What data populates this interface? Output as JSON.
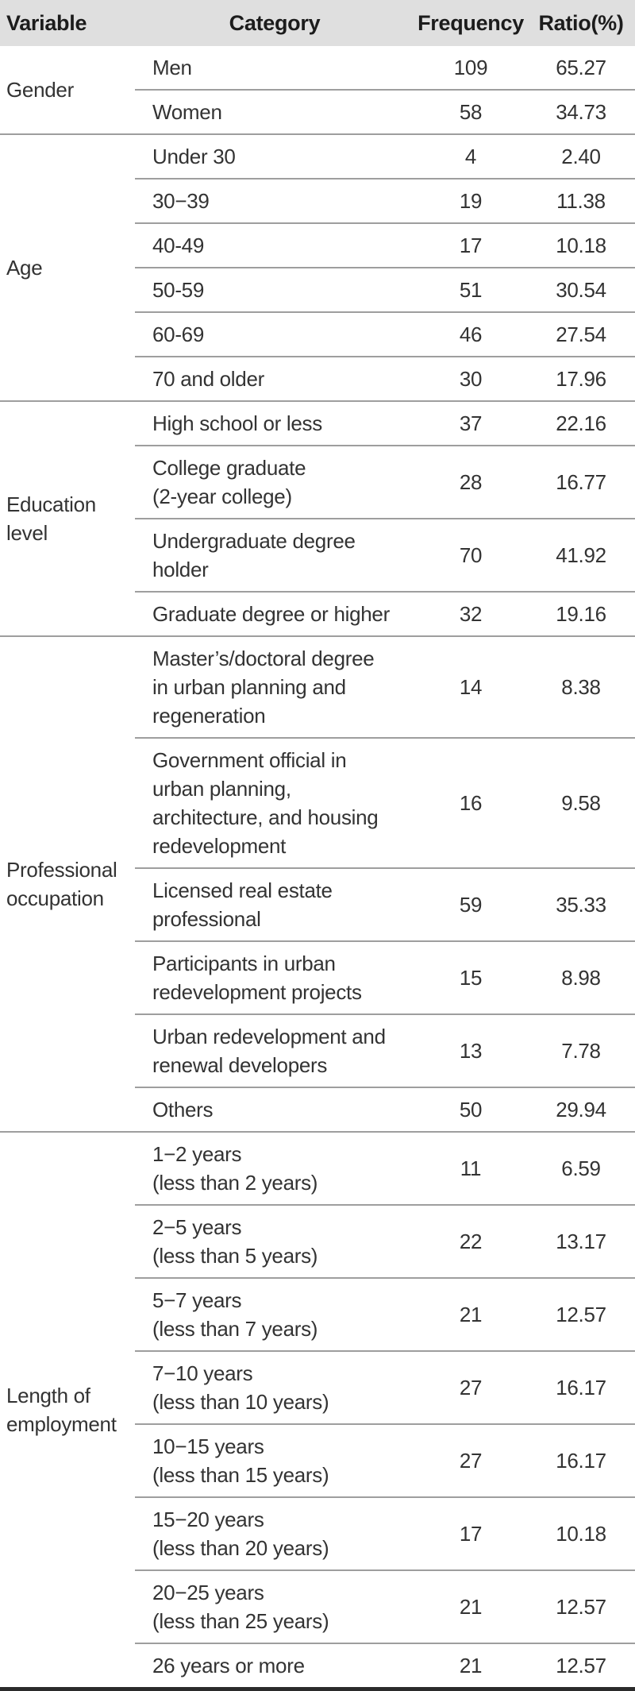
{
  "colors": {
    "header_bg": "#dfdfdf",
    "separator_line": "#9e9e9e",
    "bottom_border": "#2b2b2b",
    "text": "#333333",
    "header_text": "#1c1c1c"
  },
  "header": {
    "variable": "Variable",
    "category": "Category",
    "frequency": "Frequency",
    "ratio": "Ratio(%)"
  },
  "table": {
    "groups": [
      {
        "variable": "Gender",
        "rows": [
          {
            "category": "Men",
            "frequency": "109",
            "ratio": "65.27"
          },
          {
            "category": "Women",
            "frequency": "58",
            "ratio": "34.73"
          }
        ]
      },
      {
        "variable": "Age",
        "rows": [
          {
            "category": "Under 30",
            "frequency": "4",
            "ratio": "2.40"
          },
          {
            "category": "30−39",
            "frequency": "19",
            "ratio": "11.38"
          },
          {
            "category": "40-49",
            "frequency": "17",
            "ratio": "10.18"
          },
          {
            "category": "50-59",
            "frequency": "51",
            "ratio": "30.54"
          },
          {
            "category": "60-69",
            "frequency": "46",
            "ratio": "27.54"
          },
          {
            "category": "70 and older",
            "frequency": "30",
            "ratio": "17.96"
          }
        ]
      },
      {
        "variable": "Education\nlevel",
        "rows": [
          {
            "category": "High school or less",
            "frequency": "37",
            "ratio": "22.16"
          },
          {
            "category": "College graduate\n(2-year college)",
            "frequency": "28",
            "ratio": "16.77"
          },
          {
            "category": "Undergraduate degree\nholder",
            "frequency": "70",
            "ratio": "41.92"
          },
          {
            "category": "Graduate degree or higher",
            "frequency": "32",
            "ratio": "19.16"
          }
        ]
      },
      {
        "variable": "Professional\noccupation",
        "rows": [
          {
            "category": "Master’s/doctoral degree\nin urban planning and\nregeneration",
            "frequency": "14",
            "ratio": "8.38"
          },
          {
            "category": "Government official in\nurban planning,\narchitecture, and housing\nredevelopment",
            "frequency": "16",
            "ratio": "9.58"
          },
          {
            "category": "Licensed real estate\nprofessional",
            "frequency": "59",
            "ratio": "35.33"
          },
          {
            "category": "Participants in urban\nredevelopment projects",
            "frequency": "15",
            "ratio": "8.98"
          },
          {
            "category": "Urban redevelopment and\nrenewal developers",
            "frequency": "13",
            "ratio": "7.78"
          },
          {
            "category": "Others",
            "frequency": "50",
            "ratio": "29.94"
          }
        ]
      },
      {
        "variable": "Length of\nemployment",
        "rows": [
          {
            "category": "1−2 years\n(less than 2 years)",
            "frequency": "11",
            "ratio": "6.59"
          },
          {
            "category": "2−5 years\n(less than 5 years)",
            "frequency": "22",
            "ratio": "13.17"
          },
          {
            "category": "5−7 years\n(less than 7 years)",
            "frequency": "21",
            "ratio": "12.57"
          },
          {
            "category": "7−10 years\n(less than 10 years)",
            "frequency": "27",
            "ratio": "16.17"
          },
          {
            "category": "10−15 years\n(less than 15 years)",
            "frequency": "27",
            "ratio": "16.17"
          },
          {
            "category": "15−20 years\n(less than 20 years)",
            "frequency": "17",
            "ratio": "10.18"
          },
          {
            "category": "20−25 years\n(less than 25 years)",
            "frequency": "21",
            "ratio": "12.57"
          },
          {
            "category": "26 years or more",
            "frequency": "21",
            "ratio": "12.57"
          }
        ]
      }
    ]
  }
}
